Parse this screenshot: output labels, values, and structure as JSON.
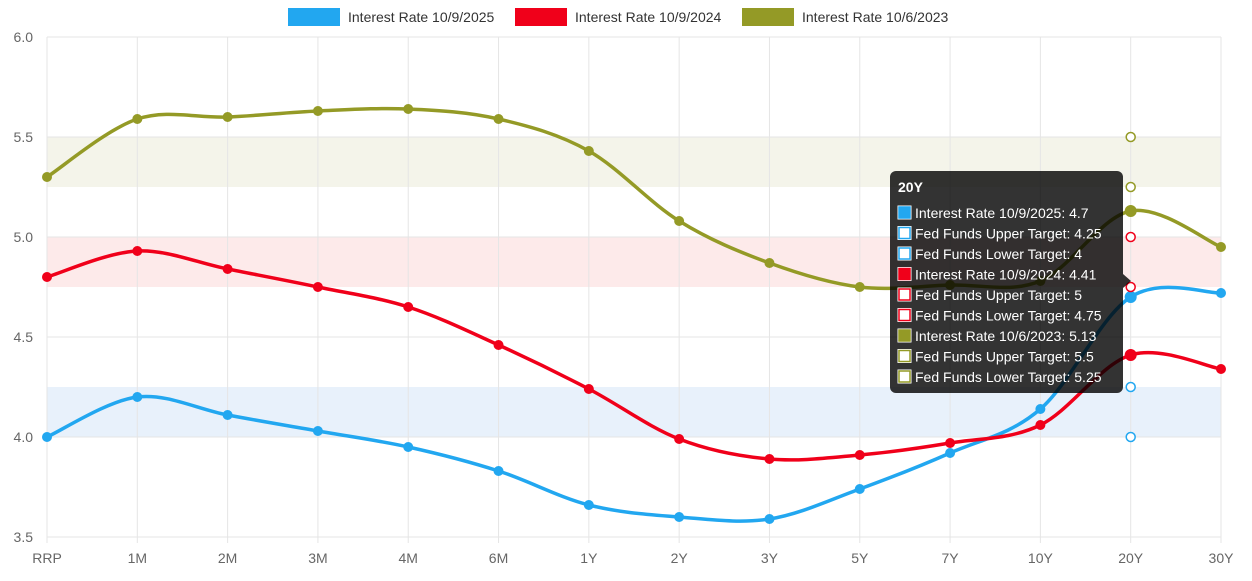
{
  "chart_data": {
    "type": "line",
    "categories": [
      "RRP",
      "1M",
      "2M",
      "3M",
      "4M",
      "6M",
      "1Y",
      "2Y",
      "3Y",
      "5Y",
      "7Y",
      "10Y",
      "20Y",
      "30Y"
    ],
    "ylim": [
      3.5,
      6.0
    ],
    "yticks": [
      "6.0",
      "5.5",
      "5.0",
      "4.5",
      "4.0",
      "3.5"
    ],
    "grid": true,
    "legend_position": "top",
    "series": [
      {
        "name": "Interest Rate 10/9/2025",
        "color": "#22a7f0",
        "values": [
          4.0,
          4.2,
          4.11,
          4.03,
          3.95,
          3.83,
          3.66,
          3.6,
          3.59,
          3.74,
          3.92,
          4.14,
          4.7,
          4.72
        ],
        "band": [
          4.0,
          4.25
        ],
        "band_color": "#e8f1fb"
      },
      {
        "name": "Interest Rate 10/9/2024",
        "color": "#f0001a",
        "values": [
          4.8,
          4.93,
          4.84,
          4.75,
          4.65,
          4.46,
          4.24,
          3.99,
          3.89,
          3.91,
          3.97,
          4.06,
          4.41,
          4.34
        ],
        "band": [
          4.75,
          5.0
        ],
        "band_color": "#fdeaea"
      },
      {
        "name": "Interest Rate 10/6/2023",
        "color": "#949a26",
        "values": [
          5.3,
          5.59,
          5.6,
          5.63,
          5.64,
          5.59,
          5.43,
          5.08,
          4.87,
          4.75,
          4.76,
          4.78,
          5.13,
          4.95
        ],
        "band": [
          5.25,
          5.5
        ],
        "band_color": "#f4f4ea"
      }
    ],
    "target_markers": {
      "category": "20Y",
      "points": [
        {
          "value": 5.5,
          "color": "#949a26"
        },
        {
          "value": 5.25,
          "color": "#949a26"
        },
        {
          "value": 5.0,
          "color": "#f0001a"
        },
        {
          "value": 4.75,
          "color": "#f0001a"
        },
        {
          "value": 4.25,
          "color": "#22a7f0"
        },
        {
          "value": 4.0,
          "color": "#22a7f0"
        }
      ]
    },
    "tooltip": {
      "category": "20Y",
      "title": "20Y",
      "items": [
        {
          "text": "Interest Rate 10/9/2025: 4.7",
          "swatch": "#22a7f0",
          "filled": true
        },
        {
          "text": "Fed Funds Upper Target: 4.25",
          "swatch": "#22a7f0",
          "filled": false
        },
        {
          "text": "Fed Funds Lower Target: 4",
          "swatch": "#22a7f0",
          "filled": false
        },
        {
          "text": "Interest Rate 10/9/2024: 4.41",
          "swatch": "#f0001a",
          "filled": true
        },
        {
          "text": "Fed Funds Upper Target: 5",
          "swatch": "#f0001a",
          "filled": false
        },
        {
          "text": "Fed Funds Lower Target: 4.75",
          "swatch": "#f0001a",
          "filled": false
        },
        {
          "text": "Interest Rate 10/6/2023: 5.13",
          "swatch": "#949a26",
          "filled": true
        },
        {
          "text": "Fed Funds Upper Target: 5.5",
          "swatch": "#949a26",
          "filled": false
        },
        {
          "text": "Fed Funds Lower Target: 5.25",
          "swatch": "#949a26",
          "filled": false
        }
      ]
    }
  }
}
